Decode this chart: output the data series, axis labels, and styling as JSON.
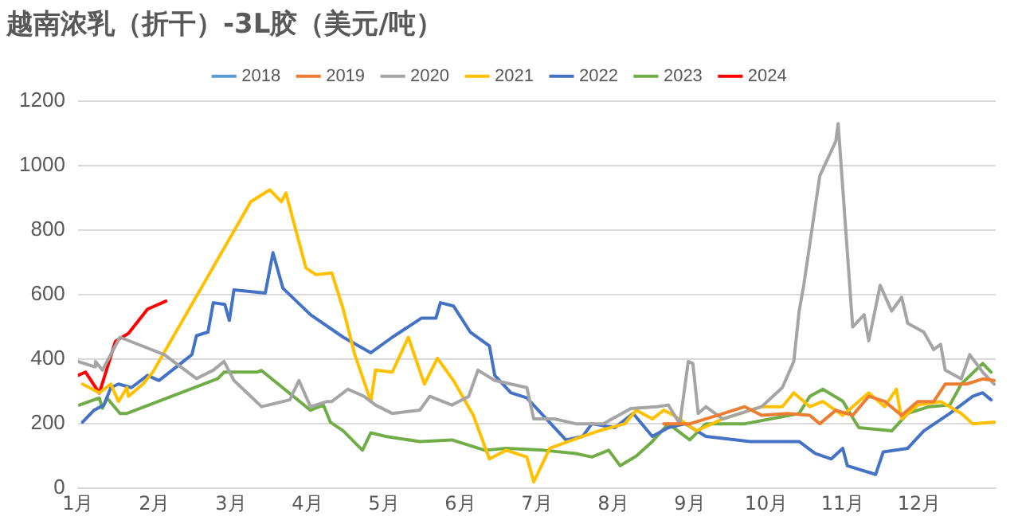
{
  "chart_data": {
    "type": "line",
    "title": "越南浓乳（折干）-3L胶（美元/吨）",
    "xlim": [
      1,
      13
    ],
    "xticks": [
      {
        "value": 1,
        "label": "1月"
      },
      {
        "value": 2,
        "label": "2月"
      },
      {
        "value": 3,
        "label": "3月"
      },
      {
        "value": 4,
        "label": "4月"
      },
      {
        "value": 5,
        "label": "5月"
      },
      {
        "value": 6,
        "label": "6月"
      },
      {
        "value": 7,
        "label": "7月"
      },
      {
        "value": 8,
        "label": "8月"
      },
      {
        "value": 9,
        "label": "9月"
      },
      {
        "value": 10,
        "label": "10月"
      },
      {
        "value": 11,
        "label": "11月"
      },
      {
        "value": 12,
        "label": "12月"
      }
    ],
    "ylim": [
      0,
      1200
    ],
    "yticks": [
      0,
      200,
      400,
      600,
      800,
      1000,
      1200
    ],
    "grid": "y",
    "legend": "top",
    "marker": "none",
    "line_style": "solid",
    "series": [
      {
        "name": "2018",
        "color": "#5b9bd5"
      },
      {
        "name": "2019",
        "color": "#ed7d31",
        "x": [
          8.66,
          9.0,
          9.36,
          9.72,
          9.94,
          10.28,
          10.57,
          10.7,
          10.91,
          11.13,
          11.34,
          11.55,
          11.77,
          11.98,
          12.19,
          12.34,
          12.62,
          12.83,
          12.98
        ],
        "values": [
          200,
          200,
          226,
          253,
          226,
          232,
          226,
          200,
          242,
          226,
          285,
          269,
          226,
          269,
          269,
          323,
          323,
          339,
          334
        ]
      },
      {
        "name": "2020",
        "color": "#a5a5a5",
        "x": [
          1.0,
          1.21,
          1.23,
          1.32,
          1.55,
          2.13,
          2.55,
          2.77,
          2.91,
          3.04,
          3.26,
          3.4,
          3.77,
          3.89,
          4.04,
          4.26,
          4.32,
          4.53,
          4.74,
          4.89,
          5.11,
          5.47,
          5.6,
          5.89,
          6.11,
          6.23,
          6.45,
          6.66,
          6.87,
          6.96,
          7.23,
          7.51,
          7.87,
          8.23,
          8.57,
          8.72,
          8.87,
          8.98,
          9.04,
          9.11,
          9.21,
          9.43,
          9.94,
          10.21,
          10.36,
          10.43,
          10.49,
          10.7,
          10.91,
          10.94,
          11.13,
          11.28,
          11.34,
          11.49,
          11.64,
          11.77,
          11.85,
          12.06,
          12.19,
          12.28,
          12.34,
          12.55,
          12.66,
          12.83,
          12.98
        ],
        "values": [
          393,
          377,
          393,
          366,
          468,
          414,
          340,
          366,
          393,
          334,
          285,
          253,
          274,
          334,
          253,
          269,
          269,
          307,
          285,
          258,
          232,
          242,
          285,
          258,
          285,
          366,
          334,
          323,
          312,
          215,
          215,
          200,
          200,
          247,
          253,
          258,
          200,
          393,
          387,
          232,
          253,
          215,
          253,
          312,
          393,
          549,
          629,
          968,
          1076,
          1130,
          500,
          538,
          457,
          629,
          549,
          592,
          511,
          484,
          430,
          446,
          366,
          339,
          414,
          360,
          323
        ]
      },
      {
        "name": "2021",
        "color": "#ffc000",
        "x": [
          1.06,
          1.28,
          1.43,
          1.53,
          1.64,
          1.66,
          1.85,
          1.98,
          3.26,
          3.51,
          3.66,
          3.72,
          3.98,
          4.11,
          4.32,
          4.47,
          4.62,
          4.83,
          4.89,
          5.11,
          5.32,
          5.53,
          5.7,
          5.91,
          6.17,
          6.38,
          6.6,
          6.87,
          6.96,
          7.17,
          7.6,
          7.81,
          8.15,
          8.3,
          8.51,
          8.66,
          8.79,
          9.09,
          9.43,
          9.94,
          10.21,
          10.36,
          10.57,
          10.74,
          11.0,
          11.34,
          11.55,
          11.7,
          11.77,
          11.98,
          12.28,
          12.55,
          12.7,
          12.98
        ],
        "values": [
          323,
          296,
          323,
          269,
          312,
          285,
          323,
          360,
          888,
          925,
          888,
          915,
          683,
          662,
          667,
          554,
          414,
          269,
          366,
          360,
          468,
          323,
          403,
          334,
          226,
          91,
          118,
          97,
          20,
          124,
          161,
          178,
          200,
          242,
          215,
          242,
          226,
          178,
          215,
          253,
          253,
          296,
          253,
          269,
          226,
          296,
          253,
          307,
          215,
          258,
          269,
          232,
          200,
          205
        ]
      },
      {
        "name": "2022",
        "color": "#4472c4",
        "x": [
          1.06,
          1.21,
          1.34,
          1.43,
          1.53,
          1.7,
          1.91,
          2.06,
          2.49,
          2.55,
          2.7,
          2.77,
          2.92,
          2.98,
          3.04,
          3.45,
          3.55,
          3.68,
          4.04,
          4.47,
          4.83,
          5.11,
          5.49,
          5.68,
          5.74,
          5.91,
          6.13,
          6.38,
          6.45,
          6.66,
          6.87,
          7.38,
          7.6,
          7.72,
          8.02,
          8.26,
          8.51,
          8.72,
          8.94,
          9.21,
          9.79,
          10.43,
          10.64,
          10.85,
          11.0,
          11.06,
          11.43,
          11.53,
          11.85,
          12.06,
          12.4,
          12.7,
          12.83,
          12.94
        ],
        "values": [
          205,
          242,
          258,
          312,
          323,
          312,
          350,
          334,
          414,
          473,
          484,
          575,
          570,
          520,
          615,
          605,
          730,
          620,
          538,
          468,
          420,
          468,
          527,
          527,
          575,
          565,
          484,
          441,
          350,
          296,
          280,
          150,
          161,
          200,
          188,
          232,
          161,
          188,
          200,
          161,
          145,
          145,
          108,
          91,
          124,
          70,
          43,
          113,
          124,
          178,
          232,
          285,
          296,
          274
        ]
      },
      {
        "name": "2023",
        "color": "#70ad47",
        "x": [
          1.02,
          1.28,
          1.32,
          1.38,
          1.55,
          1.64,
          2.83,
          2.91,
          3.34,
          3.4,
          4.04,
          4.21,
          4.3,
          4.47,
          4.72,
          4.83,
          5.04,
          5.47,
          5.89,
          6.32,
          6.6,
          7.09,
          7.51,
          7.72,
          7.94,
          8.09,
          8.3,
          8.51,
          8.72,
          9.0,
          9.21,
          9.72,
          10.43,
          10.57,
          10.74,
          11.0,
          11.21,
          11.64,
          11.85,
          12.13,
          12.4,
          12.55,
          12.83,
          12.94
        ],
        "values": [
          258,
          280,
          248,
          280,
          232,
          232,
          340,
          360,
          360,
          365,
          242,
          258,
          205,
          178,
          118,
          172,
          160,
          145,
          150,
          118,
          124,
          118,
          108,
          97,
          118,
          70,
          100,
          145,
          200,
          150,
          200,
          200,
          232,
          285,
          307,
          270,
          188,
          178,
          232,
          253,
          258,
          323,
          387,
          360
        ]
      },
      {
        "name": "2024",
        "color": "#ff0000",
        "x": [
          1.0,
          1.1,
          1.28,
          1.49,
          1.66,
          1.91,
          2.15
        ],
        "values": [
          350,
          360,
          295,
          455,
          480,
          555,
          580
        ]
      }
    ]
  }
}
